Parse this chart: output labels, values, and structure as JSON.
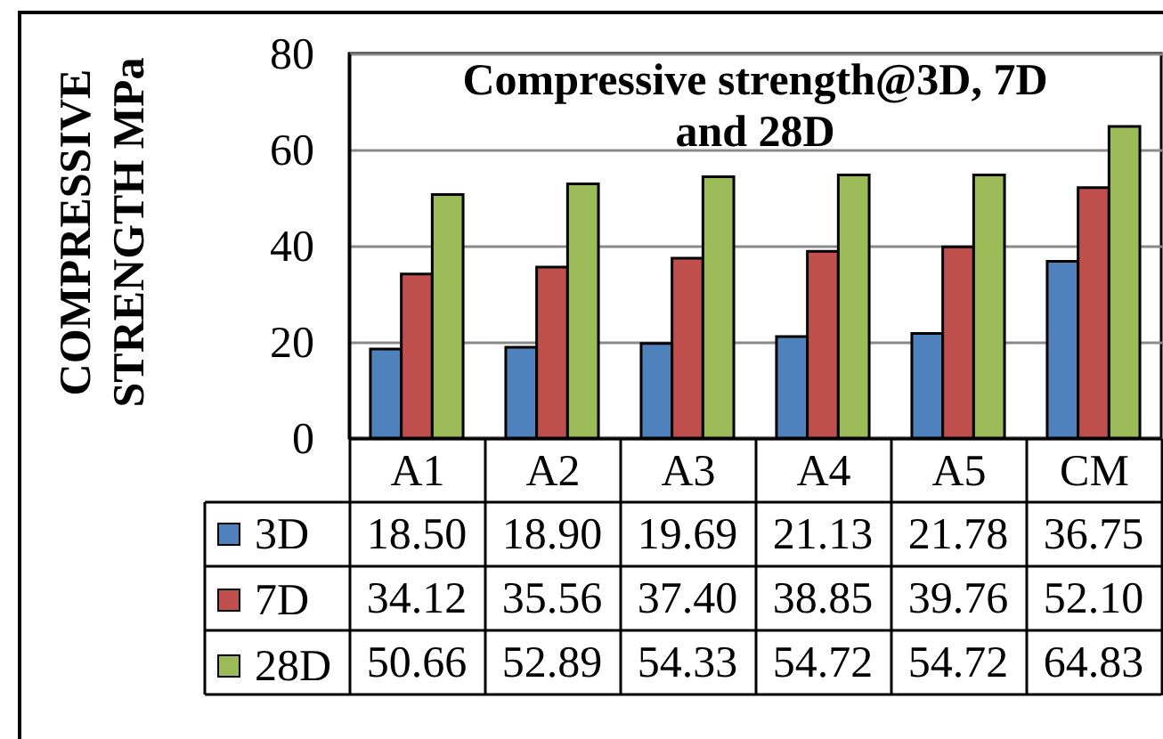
{
  "chart_data": {
    "type": "bar",
    "title": "Compressive strength@3D, 7D and 28D",
    "ylabel": "COMPRESSIVE STRENGTH MPa",
    "categories": [
      "A1",
      "A2",
      "A3",
      "A4",
      "A5",
      "CM"
    ],
    "series": [
      {
        "name": "3D",
        "color": "#4f81bd",
        "values": [
          18.5,
          18.9,
          19.69,
          21.13,
          21.78,
          36.75
        ],
        "value_labels": [
          "18.50",
          "18.90",
          "19.69",
          "21.13",
          "21.78",
          "36.75"
        ]
      },
      {
        "name": "7D",
        "color": "#c0504d",
        "values": [
          34.12,
          35.56,
          37.4,
          38.85,
          39.76,
          52.1
        ],
        "value_labels": [
          "34.12",
          "35.56",
          "37.40",
          "38.85",
          "39.76",
          "52.10"
        ]
      },
      {
        "name": "28D",
        "color": "#9bbb59",
        "values": [
          50.66,
          52.89,
          54.33,
          54.72,
          54.72,
          64.83
        ],
        "value_labels": [
          "50.66",
          "52.89",
          "54.33",
          "54.72",
          "54.72",
          "64.83"
        ]
      }
    ],
    "ylim": [
      0,
      80
    ],
    "yticks": [
      0,
      20,
      40,
      60,
      80
    ],
    "grid": "y",
    "legend": "bottom left"
  }
}
